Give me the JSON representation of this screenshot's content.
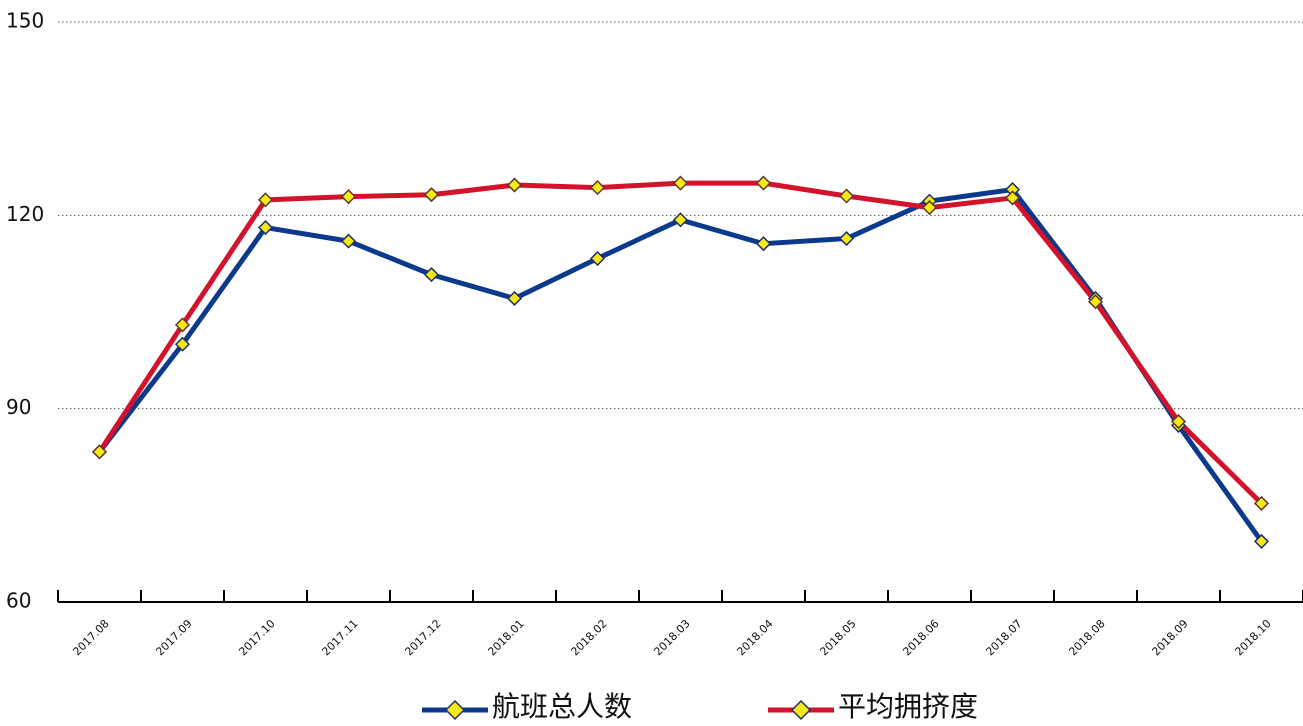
{
  "chart_data": {
    "type": "line",
    "categories": [
      "2017.08",
      "2017.09",
      "2017.10",
      "2017.11",
      "2017.12",
      "2018.01",
      "2018.02",
      "2018.03",
      "2018.04",
      "2018.05",
      "2018.06",
      "2018.07",
      "2018.08",
      "2018.09",
      "2018.10"
    ],
    "series": [
      {
        "name": "航班总人数",
        "color": "#0b3a8c",
        "values": [
          83.3,
          100,
          118.1,
          116,
          110.8,
          107.1,
          113.3,
          119.3,
          115.6,
          116.4,
          122.2,
          124,
          107.1,
          87.4,
          69.4
        ]
      },
      {
        "name": "平均拥挤度",
        "color": "#d3122c",
        "values": [
          83.3,
          103,
          122.4,
          122.9,
          123.2,
          124.7,
          124.3,
          125,
          125,
          123,
          121.2,
          122.7,
          106.6,
          88,
          75.3
        ]
      }
    ],
    "ylim": [
      60,
      150
    ],
    "yticks": [
      60,
      90,
      120,
      150
    ],
    "grid": true,
    "marker_color": "#f7e817"
  }
}
